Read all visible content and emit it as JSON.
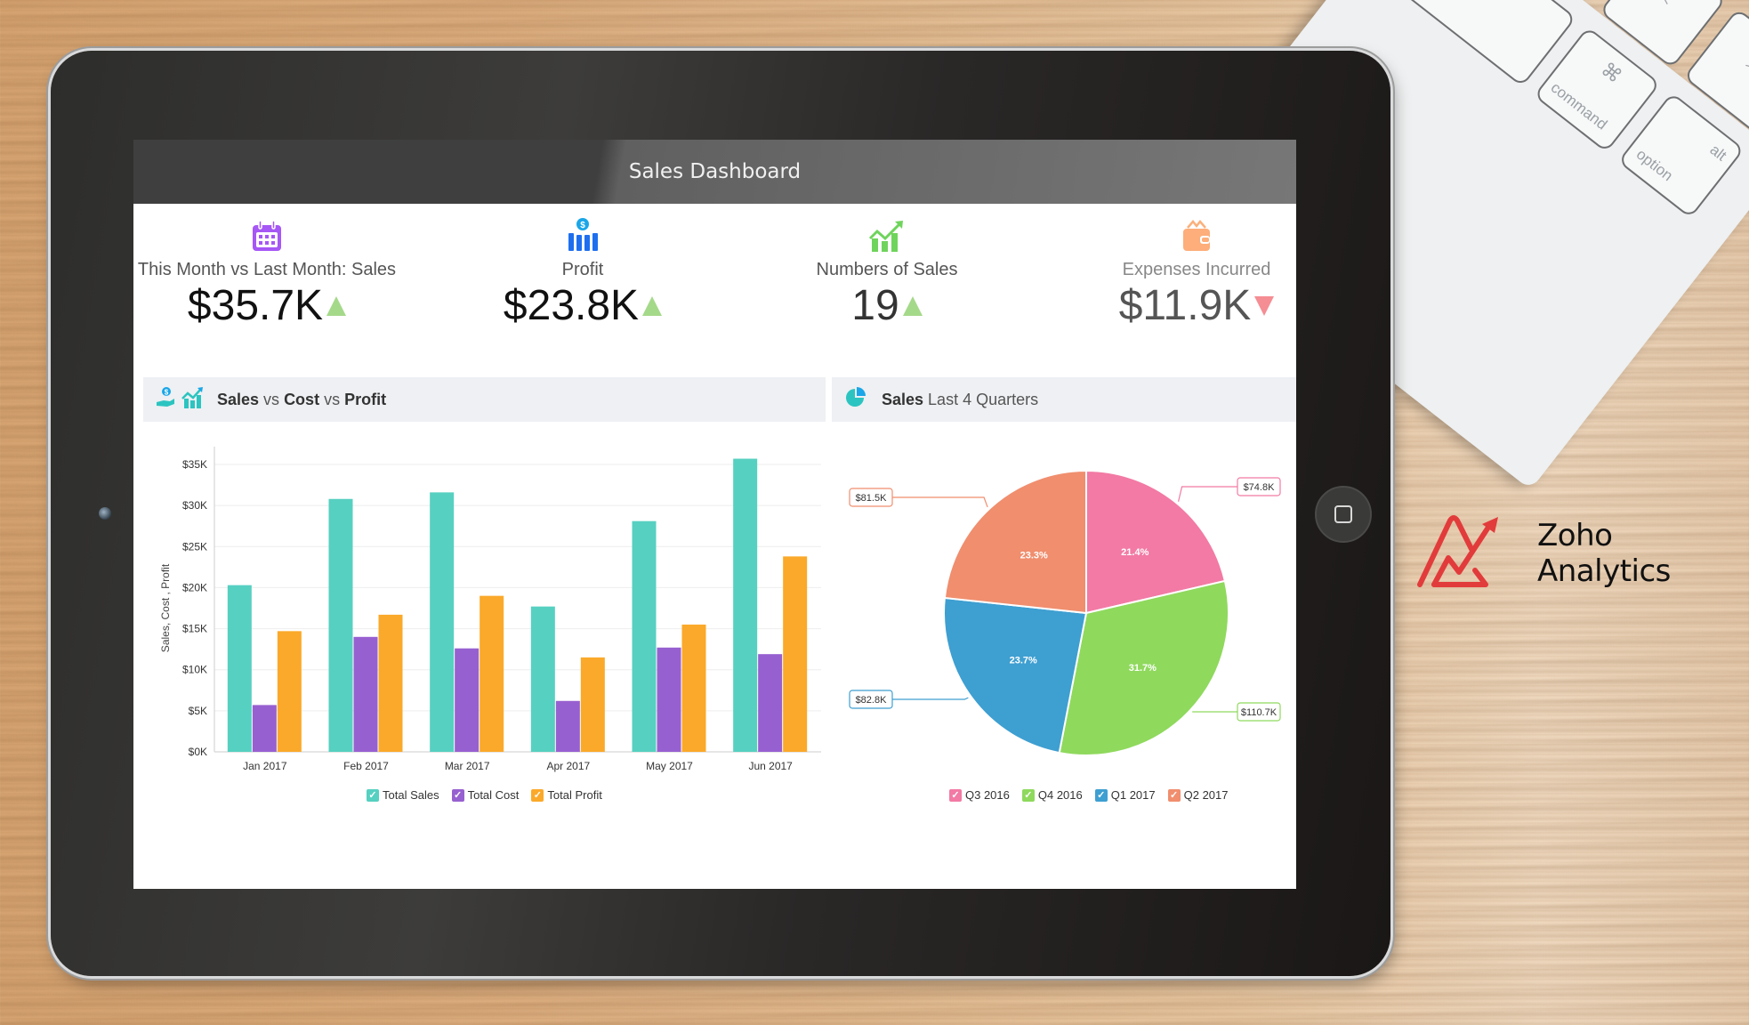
{
  "header": {
    "title": "Sales Dashboard"
  },
  "kpis": [
    {
      "label": "This Month vs Last Month: Sales",
      "value": "$35.7K",
      "trend": "up",
      "icon": "calendar-icon",
      "color": "#a855f7"
    },
    {
      "label": "Profit",
      "value": "$23.8K",
      "trend": "up",
      "icon": "money-bars-icon",
      "color": "#1e6ff0"
    },
    {
      "label": "Numbers of Sales",
      "value": "19",
      "trend": "up",
      "icon": "growth-chart-icon",
      "color": "#6fd45c"
    },
    {
      "label": "Expenses Incurred",
      "value": "$11.9K",
      "trend": "down",
      "icon": "wallet-icon",
      "color": "#fbb07a"
    }
  ],
  "bar_panel": {
    "title_parts": [
      {
        "text": "Sales",
        "bold": true
      },
      {
        "text": " vs ",
        "bold": false
      },
      {
        "text": "Cost",
        "bold": true
      },
      {
        "text": " vs ",
        "bold": false
      },
      {
        "text": "Profit",
        "bold": true
      }
    ],
    "title_sales": "Sales",
    "title_vs1": " vs ",
    "title_cost": "Cost",
    "title_vs2": " vs ",
    "title_profit": "Profit"
  },
  "pie_panel": {
    "title_bold": "Sales",
    "title_rest": " Last 4 Quarters"
  },
  "chart_data": [
    {
      "type": "bar",
      "title": "Sales vs Cost vs Profit",
      "xlabel": "",
      "ylabel": "Sales, Cost , Profit",
      "ylim": [
        0,
        35000
      ],
      "yticks": [
        "$0K",
        "$5K",
        "$10K",
        "$15K",
        "$20K",
        "$25K",
        "$30K",
        "$35K"
      ],
      "grid": true,
      "legend_position": "bottom",
      "categories": [
        "Jan 2017",
        "Feb 2017",
        "Mar 2017",
        "Apr 2017",
        "May 2017",
        "Jun 2017"
      ],
      "series": [
        {
          "name": "Total Sales",
          "color": "#56d0c1",
          "values": [
            20300,
            30800,
            31600,
            17700,
            28100,
            35700
          ]
        },
        {
          "name": "Total Cost",
          "color": "#9760d0",
          "values": [
            5700,
            14000,
            12600,
            6200,
            12700,
            11900
          ]
        },
        {
          "name": "Total Profit",
          "color": "#fba92a",
          "values": [
            14700,
            16700,
            19000,
            11500,
            15500,
            23800
          ]
        }
      ]
    },
    {
      "type": "pie",
      "title": "Sales Last 4 Quarters",
      "legend_position": "bottom",
      "categories": [
        "Q3 2016",
        "Q4 2016",
        "Q1 2017",
        "Q2 2017"
      ],
      "values": [
        74800,
        110700,
        82800,
        81500
      ],
      "value_labels": [
        "$74.8K",
        "$110.7K",
        "$82.8K",
        "$81.5K"
      ],
      "percent_labels": [
        "21.4%",
        "31.7%",
        "23.7%",
        "23.3%"
      ],
      "colors": [
        "#f27aa4",
        "#8fd95d",
        "#3e9fd1",
        "#f08e6e"
      ]
    }
  ],
  "brand": {
    "name": "Zoho Analytics",
    "color": "#e23b3b"
  },
  "keyboard": {
    "keys": [
      "command",
      "option",
      "alt",
      "⌘",
      "<",
      ">"
    ]
  }
}
